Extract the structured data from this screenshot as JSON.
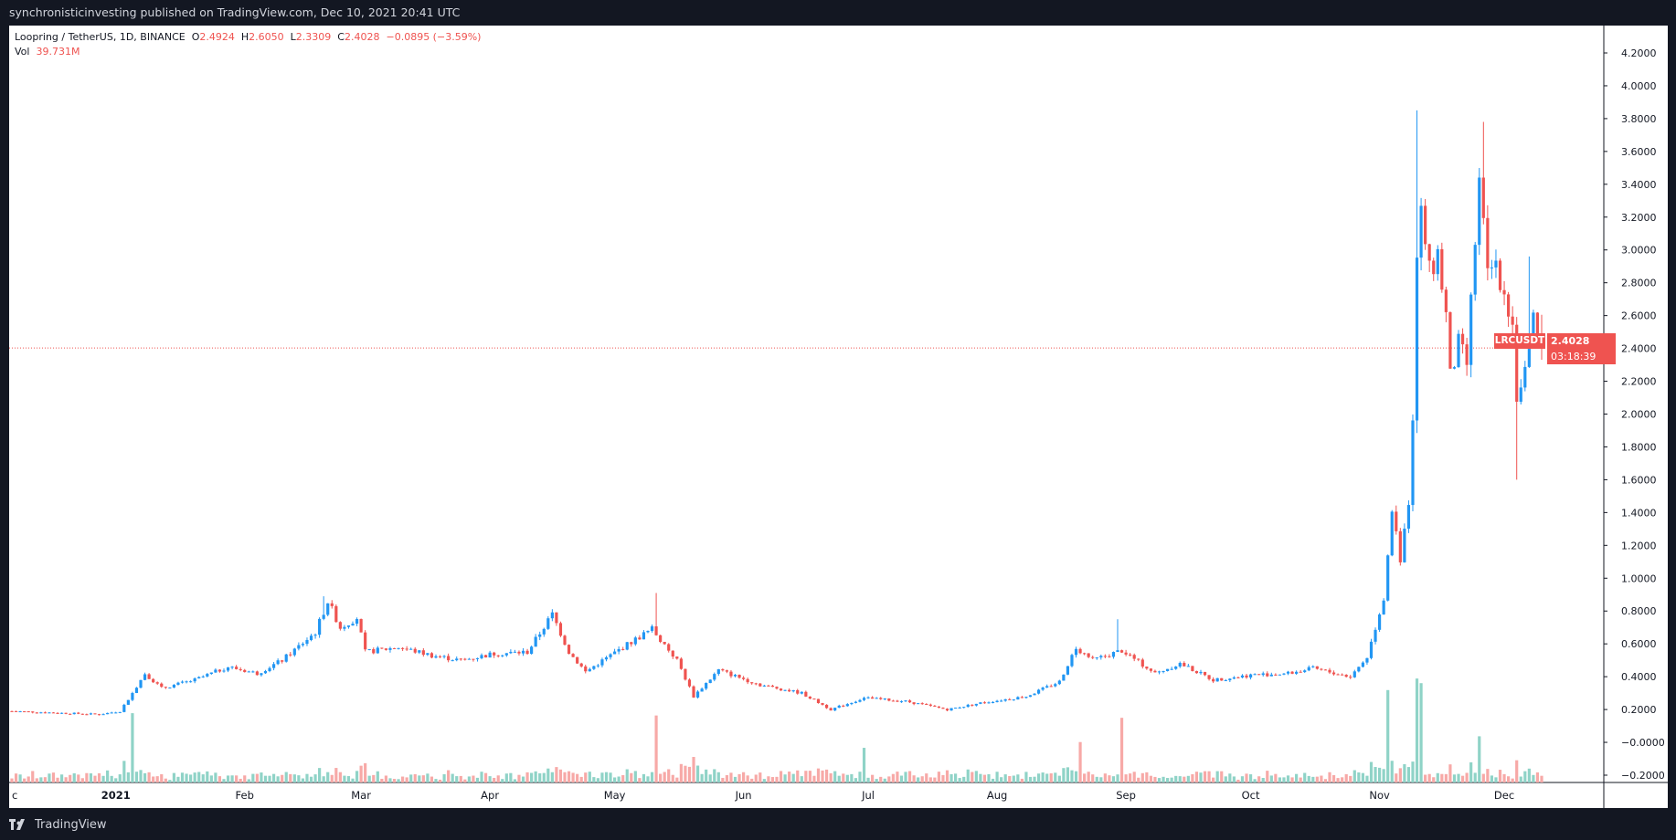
{
  "header": {
    "publisher": "synchronisticinvesting published on TradingView.com, Dec 10, 2021 20:41 UTC"
  },
  "footer": {
    "brand": "TradingView"
  },
  "legend": {
    "pair": "Loopring / TetherUS, 1D, BINANCE",
    "open_label": "O",
    "open": "2.4924",
    "high_label": "H",
    "high": "2.6050",
    "low_label": "L",
    "low": "2.3309",
    "close_label": "C",
    "close": "2.4028",
    "change": "−0.0895 (−3.59%)",
    "vol_label": "Vol",
    "vol": "39.731M"
  },
  "price_tag": {
    "symbol": "LRCUSDT",
    "price": "2.4028",
    "countdown": "03:18:39"
  },
  "colors": {
    "up": "#2196f3",
    "down": "#ef5350",
    "vol_up": "#8fd3c7",
    "vol_down": "#f7a9a7",
    "panel_bg": "#ffffff",
    "frame_bg": "#131722"
  },
  "chart_data": {
    "type": "candlestick",
    "title": "Loopring / TetherUS, 1D, BINANCE",
    "symbol": "LRCUSDT",
    "x_range": [
      "2020-12-07",
      "2021-12-10"
    ],
    "ylim": [
      -0.2,
      4.2
    ],
    "y_ticks": [
      "4.2000",
      "4.0000",
      "3.8000",
      "3.6000",
      "3.4000",
      "3.2000",
      "3.0000",
      "2.8000",
      "2.6000",
      "2.4000",
      "2.2000",
      "2.0000",
      "1.8000",
      "1.6000",
      "1.4000",
      "1.2000",
      "1.0000",
      "0.8000",
      "0.6000",
      "0.4000",
      "0.2000",
      "−0.0000",
      "−0.2000"
    ],
    "x_ticks": [
      {
        "label": "c",
        "date": "2020-12-07"
      },
      {
        "label": "2021",
        "date": "2021-01-01"
      },
      {
        "label": "Feb",
        "date": "2021-02-01"
      },
      {
        "label": "Mar",
        "date": "2021-03-01"
      },
      {
        "label": "Apr",
        "date": "2021-04-01"
      },
      {
        "label": "May",
        "date": "2021-05-01"
      },
      {
        "label": "Jun",
        "date": "2021-06-01"
      },
      {
        "label": "Jul",
        "date": "2021-07-01"
      },
      {
        "label": "Aug",
        "date": "2021-08-01"
      },
      {
        "label": "Sep",
        "date": "2021-09-01"
      },
      {
        "label": "Oct",
        "date": "2021-10-01"
      },
      {
        "label": "Nov",
        "date": "2021-11-01"
      },
      {
        "label": "Dec",
        "date": "2021-12-01"
      }
    ],
    "last_price": 2.4028,
    "series": [
      {
        "name": "LRCUSDT",
        "style": "candles",
        "interval": "1D"
      }
    ],
    "close_anchors": [
      {
        "date": "2020-12-07",
        "close": 0.19
      },
      {
        "date": "2020-12-28",
        "close": 0.17
      },
      {
        "date": "2021-01-02",
        "close": 0.19
      },
      {
        "date": "2021-01-05",
        "close": 0.3
      },
      {
        "date": "2021-01-08",
        "close": 0.42
      },
      {
        "date": "2021-01-12",
        "close": 0.33
      },
      {
        "date": "2021-01-20",
        "close": 0.38
      },
      {
        "date": "2021-01-28",
        "close": 0.46
      },
      {
        "date": "2021-02-04",
        "close": 0.42
      },
      {
        "date": "2021-02-10",
        "close": 0.5
      },
      {
        "date": "2021-02-18",
        "close": 0.67
      },
      {
        "date": "2021-02-21",
        "close": 0.86
      },
      {
        "date": "2021-02-24",
        "close": 0.7
      },
      {
        "date": "2021-02-28",
        "close": 0.76
      },
      {
        "date": "2021-03-02",
        "close": 0.55
      },
      {
        "date": "2021-03-10",
        "close": 0.58
      },
      {
        "date": "2021-03-18",
        "close": 0.53
      },
      {
        "date": "2021-03-25",
        "close": 0.5
      },
      {
        "date": "2021-04-02",
        "close": 0.54
      },
      {
        "date": "2021-04-10",
        "close": 0.55
      },
      {
        "date": "2021-04-16",
        "close": 0.78
      },
      {
        "date": "2021-04-20",
        "close": 0.55
      },
      {
        "date": "2021-04-24",
        "close": 0.43
      },
      {
        "date": "2021-05-03",
        "close": 0.58
      },
      {
        "date": "2021-05-10",
        "close": 0.69
      },
      {
        "date": "2021-05-16",
        "close": 0.5
      },
      {
        "date": "2021-05-20",
        "close": 0.28
      },
      {
        "date": "2021-05-26",
        "close": 0.44
      },
      {
        "date": "2021-06-05",
        "close": 0.35
      },
      {
        "date": "2021-06-15",
        "close": 0.3
      },
      {
        "date": "2021-06-22",
        "close": 0.2
      },
      {
        "date": "2021-06-30",
        "close": 0.27
      },
      {
        "date": "2021-07-10",
        "close": 0.25
      },
      {
        "date": "2021-07-20",
        "close": 0.2
      },
      {
        "date": "2021-07-28",
        "close": 0.24
      },
      {
        "date": "2021-08-08",
        "close": 0.28
      },
      {
        "date": "2021-08-16",
        "close": 0.37
      },
      {
        "date": "2021-08-20",
        "close": 0.58
      },
      {
        "date": "2021-08-24",
        "close": 0.5
      },
      {
        "date": "2021-08-31",
        "close": 0.56
      },
      {
        "date": "2021-09-08",
        "close": 0.42
      },
      {
        "date": "2021-09-14",
        "close": 0.48
      },
      {
        "date": "2021-09-22",
        "close": 0.38
      },
      {
        "date": "2021-10-01",
        "close": 0.41
      },
      {
        "date": "2021-10-10",
        "close": 0.42
      },
      {
        "date": "2021-10-16",
        "close": 0.45
      },
      {
        "date": "2021-10-25",
        "close": 0.4
      },
      {
        "date": "2021-10-29",
        "close": 0.52
      },
      {
        "date": "2021-11-02",
        "close": 0.88
      },
      {
        "date": "2021-11-04",
        "close": 1.42
      },
      {
        "date": "2021-11-06",
        "close": 1.12
      },
      {
        "date": "2021-11-08",
        "close": 1.48
      },
      {
        "date": "2021-11-09",
        "close": 2.0
      },
      {
        "date": "2021-11-10",
        "close": 3.02
      },
      {
        "date": "2021-11-11",
        "close": 3.25
      },
      {
        "date": "2021-11-13",
        "close": 2.85
      },
      {
        "date": "2021-11-15",
        "close": 2.98
      },
      {
        "date": "2021-11-17",
        "close": 2.6
      },
      {
        "date": "2021-11-18",
        "close": 2.22
      },
      {
        "date": "2021-11-20",
        "close": 2.42
      },
      {
        "date": "2021-11-22",
        "close": 2.3
      },
      {
        "date": "2021-11-24",
        "close": 3.05
      },
      {
        "date": "2021-11-25",
        "close": 3.4
      },
      {
        "date": "2021-11-27",
        "close": 2.85
      },
      {
        "date": "2021-11-29",
        "close": 2.93
      },
      {
        "date": "2021-12-01",
        "close": 2.75
      },
      {
        "date": "2021-12-03",
        "close": 2.55
      },
      {
        "date": "2021-12-04",
        "close": 2.1
      },
      {
        "date": "2021-12-06",
        "close": 2.25
      },
      {
        "date": "2021-12-08",
        "close": 2.55
      },
      {
        "date": "2021-12-10",
        "close": 2.4028
      }
    ],
    "notable_highs": [
      {
        "date": "2021-02-20",
        "high": 0.89
      },
      {
        "date": "2021-05-11",
        "high": 0.91
      },
      {
        "date": "2021-08-30",
        "high": 0.75
      },
      {
        "date": "2021-11-10",
        "high": 3.85
      },
      {
        "date": "2021-11-26",
        "high": 3.78
      },
      {
        "date": "2021-12-07",
        "high": 2.96
      }
    ],
    "notable_lows": [
      {
        "date": "2021-12-04",
        "low": 1.6
      }
    ],
    "volume_spikes": [
      {
        "date": "2021-01-05",
        "rel": 0.6
      },
      {
        "date": "2021-05-11",
        "rel": 0.58
      },
      {
        "date": "2021-06-30",
        "rel": 0.3
      },
      {
        "date": "2021-08-21",
        "rel": 0.35
      },
      {
        "date": "2021-08-31",
        "rel": 0.56
      },
      {
        "date": "2021-11-03",
        "rel": 0.8
      },
      {
        "date": "2021-11-10",
        "rel": 0.9
      },
      {
        "date": "2021-11-11",
        "rel": 0.86
      },
      {
        "date": "2021-11-25",
        "rel": 0.4
      }
    ]
  }
}
